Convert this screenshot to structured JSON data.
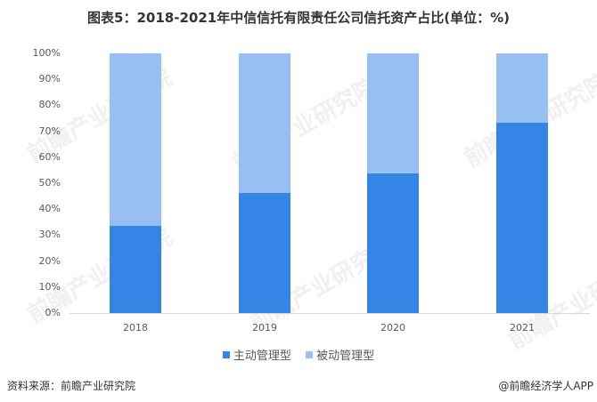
{
  "title": "图表5：2018-2021年中信信托有限责任公司信托资产占比(单位：%)",
  "colors": {
    "active": "#3585E6",
    "passive": "#97BFF1"
  },
  "legend": [
    {
      "label": "主动管理型",
      "color": "#3585E6"
    },
    {
      "label": "被动管理型",
      "color": "#97BFF1"
    }
  ],
  "yticks": [
    "0%",
    "10%",
    "20%",
    "30%",
    "40%",
    "50%",
    "60%",
    "70%",
    "80%",
    "90%",
    "100%"
  ],
  "footer": {
    "source": "资料来源：前瞻产业研究院",
    "credit": "@前瞻经济学人APP"
  },
  "watermark": "前瞻产业研究院",
  "chart_data": {
    "type": "bar",
    "stacked": true,
    "title": "图表5：2018-2021年中信信托有限责任公司信托资产占比(单位：%)",
    "categories": [
      "2018",
      "2019",
      "2020",
      "2021"
    ],
    "series": [
      {
        "name": "主动管理型",
        "values": [
          33.6,
          46.3,
          53.9,
          73.4
        ]
      },
      {
        "name": "被动管理型",
        "values": [
          66.4,
          53.7,
          46.1,
          26.6
        ]
      }
    ],
    "xlabel": "",
    "ylabel": "",
    "ylim": [
      0,
      100
    ],
    "ytick_format": "percent",
    "grid": false,
    "legend_position": "bottom"
  }
}
